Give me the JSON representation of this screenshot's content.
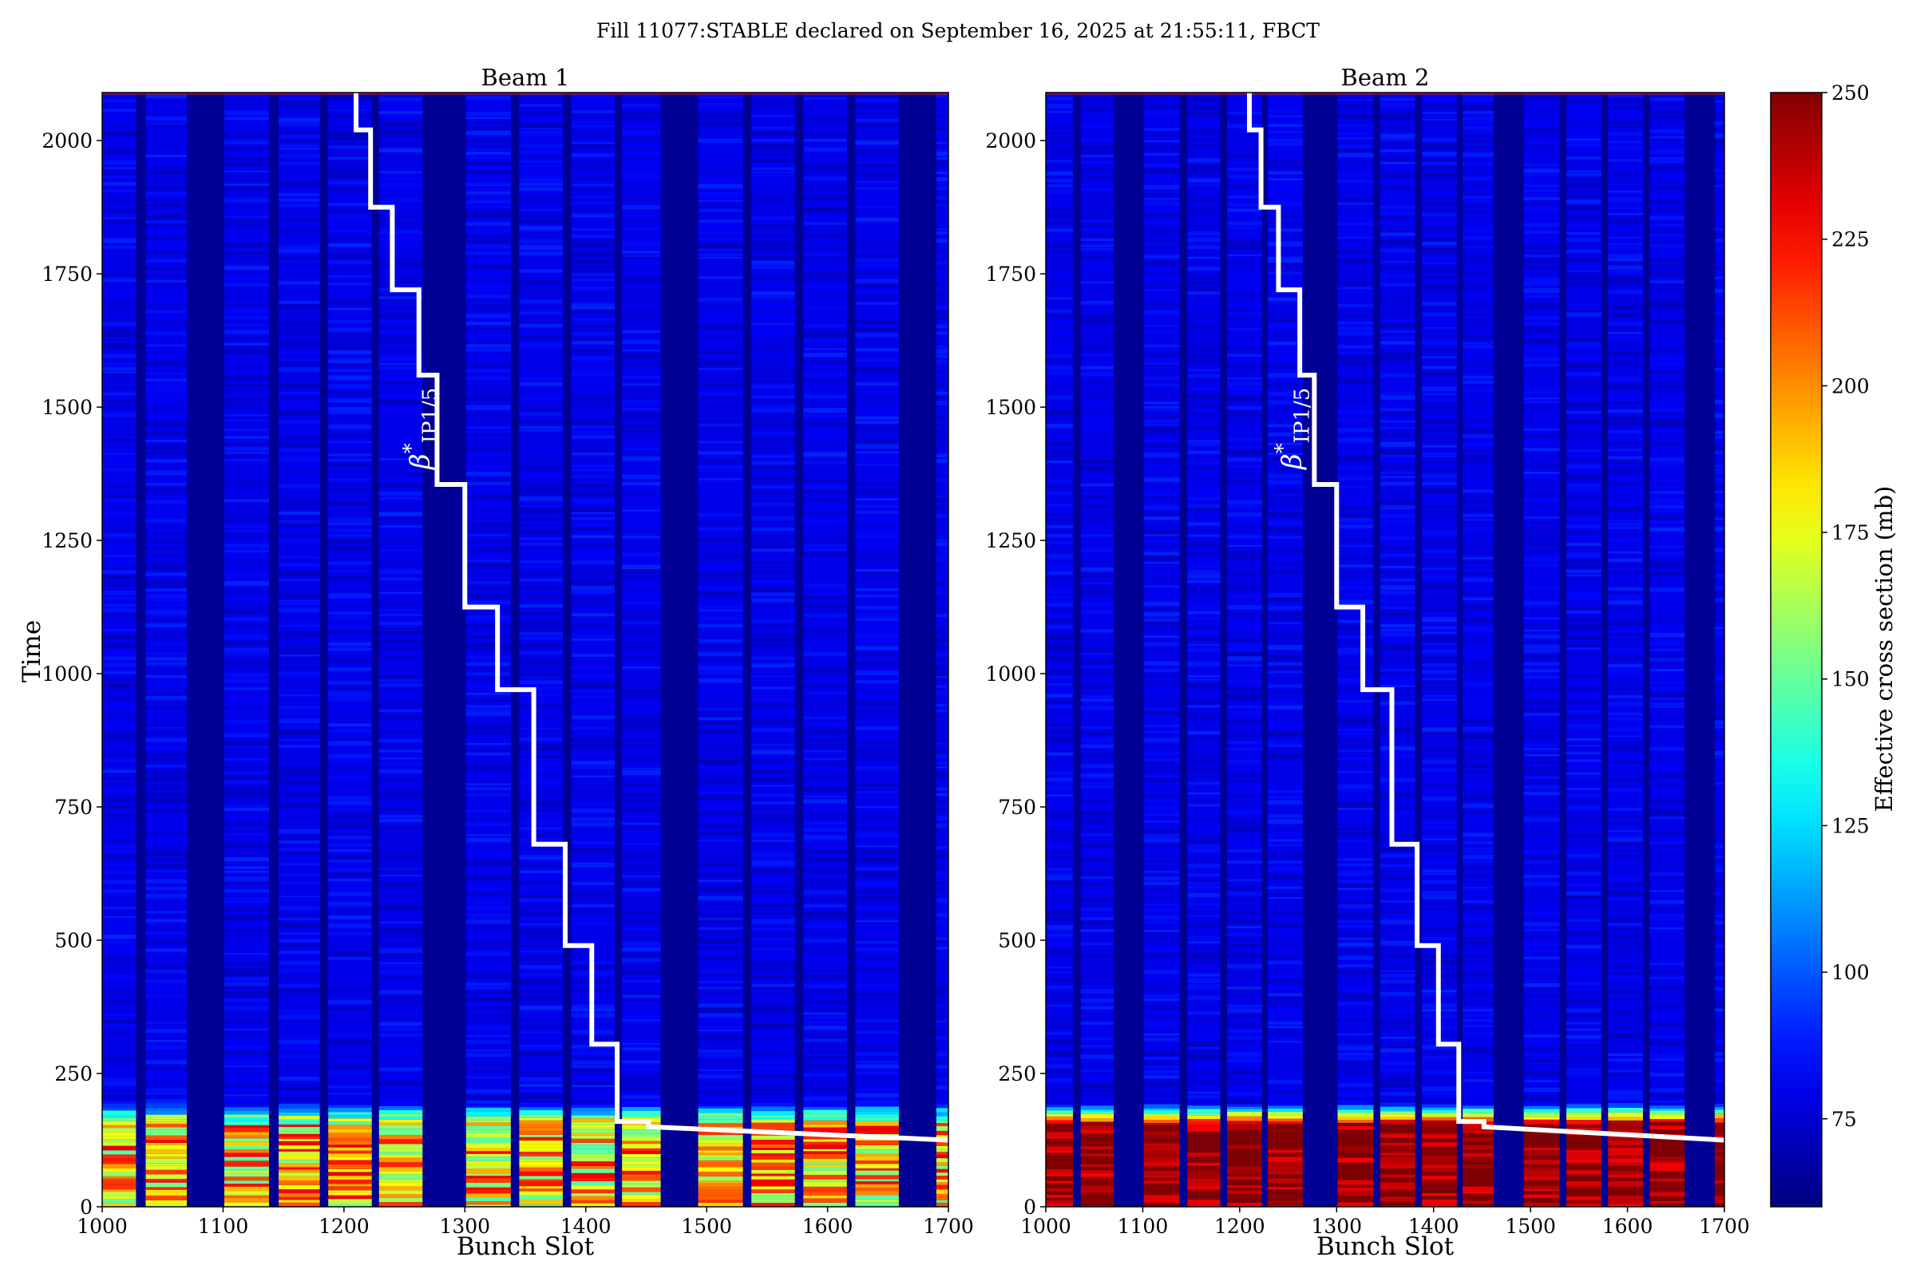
{
  "figure_title": "Fill 11077:STABLE declared on September 16, 2025 at 21:55:11, FBCT",
  "colorbar": {
    "label": "Effective cross section (mb)",
    "ticks": [
      75,
      100,
      125,
      150,
      175,
      200,
      225,
      250
    ],
    "range": [
      60,
      250
    ],
    "colormap": "jet"
  },
  "annotation": {
    "symbol": "β",
    "superscript": "*",
    "subscript": "IP1/5"
  },
  "chart_data": [
    {
      "type": "heatmap",
      "title": "Beam 1",
      "xlabel": "Bunch Slot",
      "ylabel": "Time",
      "xlim": [
        1000,
        1700
      ],
      "ylim": [
        0,
        2090
      ],
      "xticks": [
        1000,
        1100,
        1200,
        1300,
        1400,
        1500,
        1600,
        1700
      ],
      "yticks": [
        0,
        250,
        500,
        750,
        1000,
        1250,
        1500,
        1750,
        2000
      ],
      "filled_slot_ranges": [
        [
          1000,
          1028
        ],
        [
          1036,
          1070
        ],
        [
          1101,
          1138
        ],
        [
          1146,
          1180
        ],
        [
          1187,
          1223
        ],
        [
          1229,
          1265
        ],
        [
          1301,
          1338
        ],
        [
          1345,
          1381
        ],
        [
          1388,
          1424
        ],
        [
          1430,
          1462
        ],
        [
          1493,
          1530
        ],
        [
          1537,
          1573
        ],
        [
          1580,
          1616
        ],
        [
          1623,
          1659
        ],
        [
          1690,
          1700
        ]
      ],
      "heatmap_values": {
        "background_mb": 80,
        "early_time_end": 150,
        "early_value_mb": 180,
        "early_peak_mb": 225
      },
      "beta_star_steps": [
        {
          "time": 2090,
          "slot": 1210
        },
        {
          "time": 2020,
          "slot": 1222
        },
        {
          "time": 1875,
          "slot": 1240
        },
        {
          "time": 1720,
          "slot": 1262
        },
        {
          "time": 1560,
          "slot": 1277
        },
        {
          "time": 1355,
          "slot": 1300
        },
        {
          "time": 1125,
          "slot": 1327
        },
        {
          "time": 970,
          "slot": 1357
        },
        {
          "time": 680,
          "slot": 1383
        },
        {
          "time": 490,
          "slot": 1405
        },
        {
          "time": 305,
          "slot": 1426
        },
        {
          "time": 160,
          "slot": 1452
        }
      ],
      "beta_star_tail": [
        {
          "slot": 1452,
          "time": 150
        },
        {
          "slot": 1700,
          "time": 125
        }
      ]
    },
    {
      "type": "heatmap",
      "title": "Beam 2",
      "xlabel": "Bunch Slot",
      "ylabel": "",
      "xlim": [
        1000,
        1700
      ],
      "ylim": [
        0,
        2090
      ],
      "xticks": [
        1000,
        1100,
        1200,
        1300,
        1400,
        1500,
        1600,
        1700
      ],
      "yticks": [
        0,
        250,
        500,
        750,
        1000,
        1250,
        1500,
        1750,
        2000
      ],
      "filled_slot_ranges": [
        [
          1000,
          1028
        ],
        [
          1036,
          1070
        ],
        [
          1101,
          1138
        ],
        [
          1146,
          1180
        ],
        [
          1187,
          1223
        ],
        [
          1229,
          1265
        ],
        [
          1301,
          1338
        ],
        [
          1345,
          1381
        ],
        [
          1388,
          1424
        ],
        [
          1430,
          1462
        ],
        [
          1493,
          1530
        ],
        [
          1537,
          1573
        ],
        [
          1580,
          1616
        ],
        [
          1623,
          1659
        ],
        [
          1690,
          1700
        ]
      ],
      "heatmap_values": {
        "background_mb": 80,
        "early_time_end": 150,
        "early_value_mb": 245,
        "early_peak_mb": 250
      },
      "beta_star_steps": [
        {
          "time": 2090,
          "slot": 1210
        },
        {
          "time": 2020,
          "slot": 1222
        },
        {
          "time": 1875,
          "slot": 1240
        },
        {
          "time": 1720,
          "slot": 1262
        },
        {
          "time": 1560,
          "slot": 1277
        },
        {
          "time": 1355,
          "slot": 1300
        },
        {
          "time": 1125,
          "slot": 1327
        },
        {
          "time": 970,
          "slot": 1357
        },
        {
          "time": 680,
          "slot": 1383
        },
        {
          "time": 490,
          "slot": 1405
        },
        {
          "time": 305,
          "slot": 1426
        },
        {
          "time": 160,
          "slot": 1452
        }
      ],
      "beta_star_tail": [
        {
          "slot": 1452,
          "time": 150
        },
        {
          "slot": 1700,
          "time": 125
        }
      ]
    }
  ]
}
